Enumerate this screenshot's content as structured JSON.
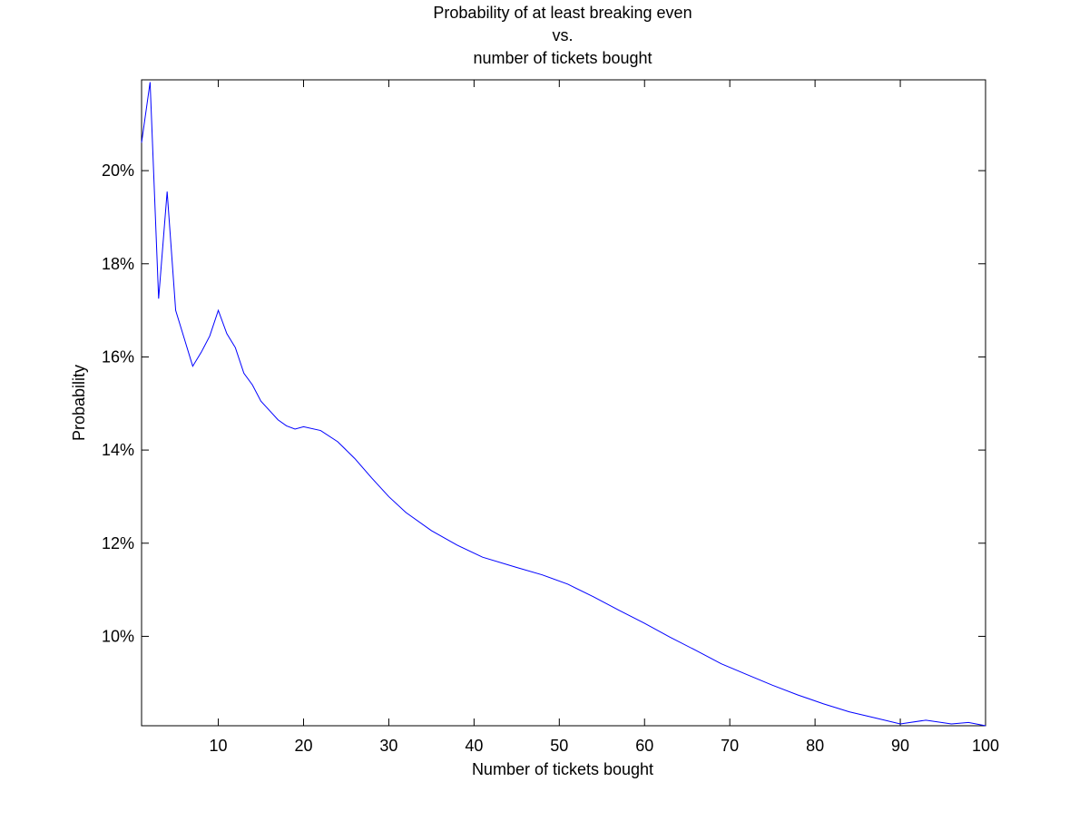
{
  "chart_data": {
    "type": "line",
    "title_lines": [
      "Probability of at least breaking even",
      "vs.",
      "number of tickets bought"
    ],
    "xlabel": "Number of tickets bought",
    "ylabel": "Probability",
    "xlim": [
      1,
      100
    ],
    "ylim": [
      0.0808,
      0.2195
    ],
    "xticks": [
      10,
      20,
      30,
      40,
      50,
      60,
      70,
      80,
      90,
      100
    ],
    "xtick_labels": [
      "10",
      "20",
      "30",
      "40",
      "50",
      "60",
      "70",
      "80",
      "90",
      "100"
    ],
    "yticks": [
      0.1,
      0.12,
      0.14,
      0.16,
      0.18,
      0.2
    ],
    "ytick_labels": [
      "10%",
      "12%",
      "14%",
      "16%",
      "18%",
      "20%"
    ],
    "grid": false,
    "line_color": "#0000ff",
    "series": [
      {
        "x": [
          1,
          2,
          3,
          4,
          5,
          6,
          7,
          8,
          9,
          10,
          11,
          12,
          13,
          14,
          15,
          16,
          17,
          18,
          19,
          20,
          22,
          24,
          26,
          28,
          30,
          32,
          35,
          38,
          41,
          45,
          48,
          51,
          54,
          57,
          60,
          63,
          66,
          69,
          72,
          75,
          78,
          81,
          84,
          87,
          90,
          93,
          96,
          98,
          100
        ],
        "y": [
          0.206,
          0.219,
          0.1725,
          0.1955,
          0.17,
          0.164,
          0.158,
          0.161,
          0.1645,
          0.17,
          0.165,
          0.162,
          0.1565,
          0.154,
          0.1505,
          0.1485,
          0.1465,
          0.1452,
          0.1445,
          0.145,
          0.1442,
          0.1418,
          0.1382,
          0.134,
          0.13,
          0.1266,
          0.1227,
          0.1196,
          0.117,
          0.1148,
          0.1132,
          0.1112,
          0.1085,
          0.1056,
          0.1028,
          0.0998,
          0.097,
          0.0941,
          0.0918,
          0.0895,
          0.0874,
          0.0855,
          0.0838,
          0.0825,
          0.0812,
          0.082,
          0.0812,
          0.0815,
          0.0808
        ]
      }
    ]
  }
}
